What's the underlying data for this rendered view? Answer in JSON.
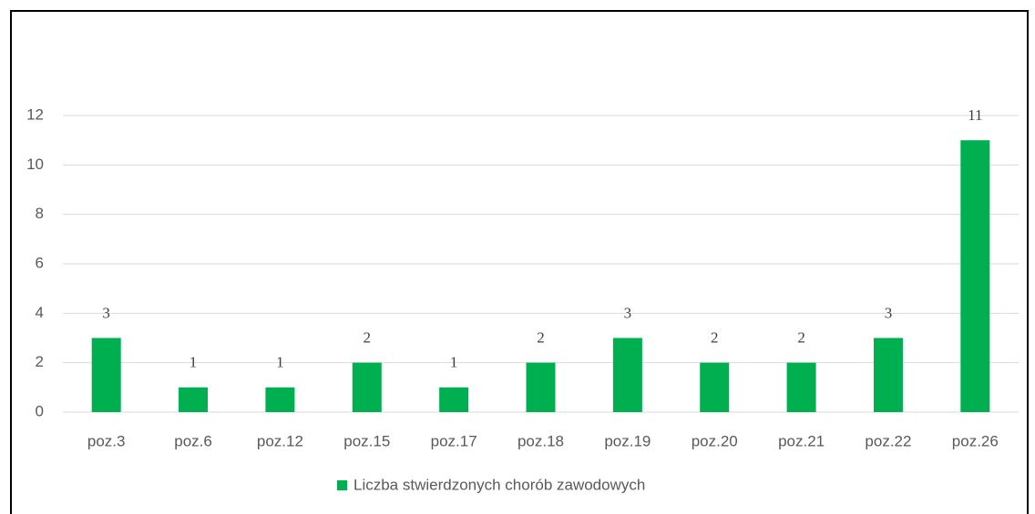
{
  "chart_data": {
    "type": "bar",
    "categories": [
      "poz.3",
      "poz.6",
      "poz.12",
      "poz.15",
      "poz.17",
      "poz.18",
      "poz.19",
      "poz.20",
      "poz.21",
      "poz.22",
      "poz.26"
    ],
    "series": [
      {
        "name": "Liczba stwierdzonych chorób zawodowych",
        "color": "#00b050",
        "values": [
          3,
          1,
          1,
          2,
          1,
          2,
          3,
          2,
          2,
          3,
          11
        ]
      }
    ],
    "ylim": [
      0,
      12
    ],
    "yticks": [
      0,
      2,
      4,
      6,
      8,
      10,
      12
    ],
    "grid": true,
    "legend": "bottom"
  }
}
